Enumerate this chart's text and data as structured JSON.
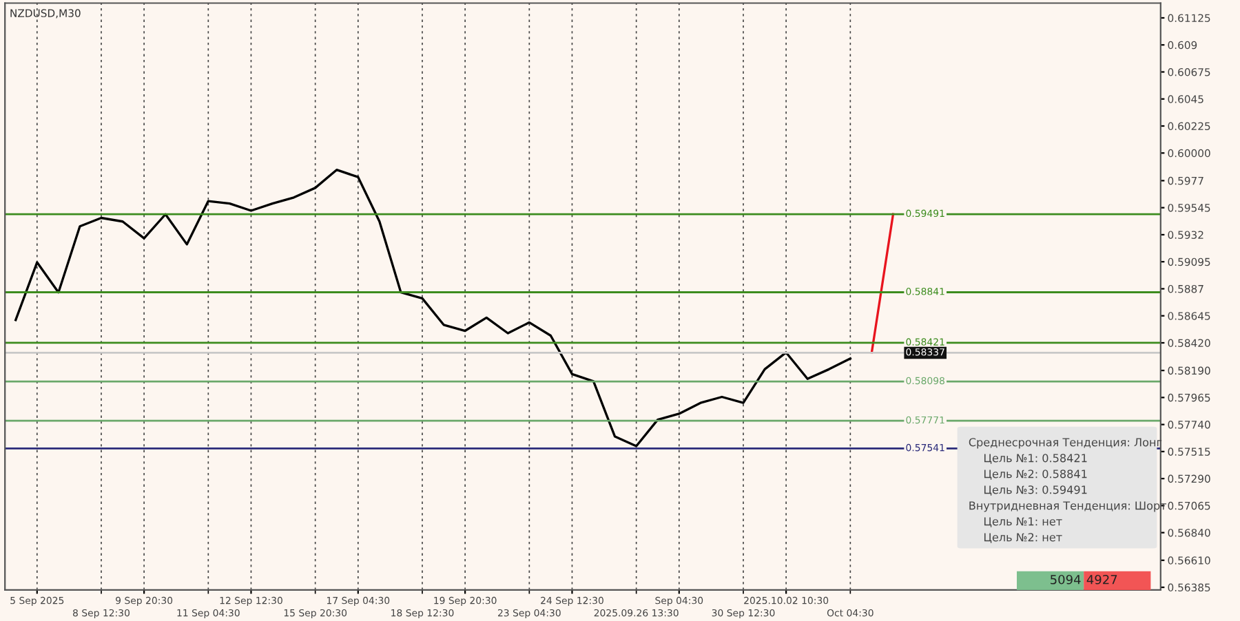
{
  "chart_data": {
    "type": "line",
    "title": "NZDUSD,M30",
    "categories": [
      null,
      "5 Sep 2025",
      null,
      null,
      "8 Sep 12:30",
      null,
      "9 Sep 20:30",
      null,
      null,
      "11 Sep 04:30",
      null,
      "12 Sep 12:30",
      null,
      null,
      "15 Sep 20:30",
      null,
      "17 Sep 04:30",
      null,
      null,
      "18 Sep 12:30",
      null,
      "19 Sep 20:30",
      null,
      null,
      "23 Sep 04:30",
      null,
      "24 Sep 12:30",
      null,
      null,
      "2025.09.26 13:30",
      null,
      "Sep 04:30",
      null,
      null,
      "30 Sep 12:30",
      null,
      "2025.10.02 10:30",
      null,
      null,
      "Oct 04:30",
      null,
      null,
      null,
      null,
      null,
      null,
      null,
      null,
      null,
      null,
      null,
      null,
      null,
      null
    ],
    "series": [
      {
        "color": "#000000",
        "values": [
          0.5861,
          0.5909,
          0.5884,
          0.5939,
          0.5946,
          0.5943,
          0.5929,
          0.5949,
          0.5924,
          0.596,
          0.5958,
          0.5952,
          0.5958,
          0.5963,
          0.5971,
          0.5986,
          0.598,
          0.5943,
          0.5884,
          0.5879,
          0.5857,
          0.5852,
          0.5863,
          0.585,
          0.5859,
          0.5848,
          0.5816,
          0.581,
          0.5764,
          0.5756,
          0.5778,
          0.5783,
          0.5792,
          0.5797,
          0.5792,
          0.582,
          0.5834,
          0.5812,
          0.582,
          0.5829,
          null,
          null,
          null,
          null,
          null,
          null,
          null,
          null,
          null,
          null,
          null,
          null,
          null,
          null
        ]
      },
      {
        "color": "#e8141e",
        "values": [
          null,
          null,
          null,
          null,
          null,
          null,
          null,
          null,
          null,
          null,
          null,
          null,
          null,
          null,
          null,
          null,
          null,
          null,
          null,
          null,
          null,
          null,
          null,
          null,
          null,
          null,
          null,
          null,
          null,
          null,
          null,
          null,
          null,
          null,
          null,
          null,
          null,
          null,
          null,
          null,
          0.5834,
          0.5949,
          null,
          null,
          null,
          null,
          null,
          null,
          null,
          null,
          null,
          null,
          null,
          null
        ]
      }
    ],
    "ylim": [
      0.56363,
      0.61248
    ],
    "yticks": [
      0.61125,
      0.609,
      0.60675,
      0.6045,
      0.60225,
      {
        "value": 0.6,
        "label": "0.60000"
      },
      0.5977,
      0.59545,
      0.5932,
      0.59095,
      0.5887,
      0.58645,
      {
        "value": 0.5842,
        "label": "0.58420"
      },
      {
        "value": 0.5819,
        "label": "0.58190"
      },
      0.57965,
      {
        "value": 0.5774,
        "label": "0.57740"
      },
      0.57515,
      {
        "value": 0.5729,
        "label": "0.57290"
      },
      0.57065,
      {
        "value": 0.5684,
        "label": "0.56840"
      },
      {
        "value": 0.5661,
        "label": "0.56610"
      },
      0.56385
    ],
    "grid": "x",
    "line_style": "solid",
    "ref_lines": [
      {
        "axis": "y",
        "value": 0.59491,
        "label": "0.59491",
        "color": "#3c8c1e"
      },
      {
        "axis": "y",
        "value": 0.58841,
        "label": "0.58841",
        "color": "#3c8c1e"
      },
      {
        "axis": "y",
        "value": 0.58421,
        "label": "0.58421",
        "color": "#3c8c1e"
      },
      {
        "axis": "y",
        "value": 0.58337,
        "label": "0.58337",
        "color": "#c8c8c8"
      },
      {
        "axis": "y",
        "value": 0.58098,
        "label": "0.58098",
        "color": "#6aa86a"
      },
      {
        "axis": "y",
        "value": 0.57771,
        "label": "0.57771",
        "color": "#6aa86a"
      },
      {
        "axis": "y",
        "value": 0.57541,
        "label": "0.57541",
        "color": "#2a2a7a"
      }
    ],
    "annotations": [
      "Среднесрочная Тенденция: Лонг",
      "Цель №1: 0.58421",
      "Цель №2: 0.58841",
      "Цель №3: 0.59491",
      "Внутридневная Тенденция: Шорт",
      "Цель №1: нет",
      "Цель №2: нет",
      "5094",
      "4927"
    ]
  }
}
